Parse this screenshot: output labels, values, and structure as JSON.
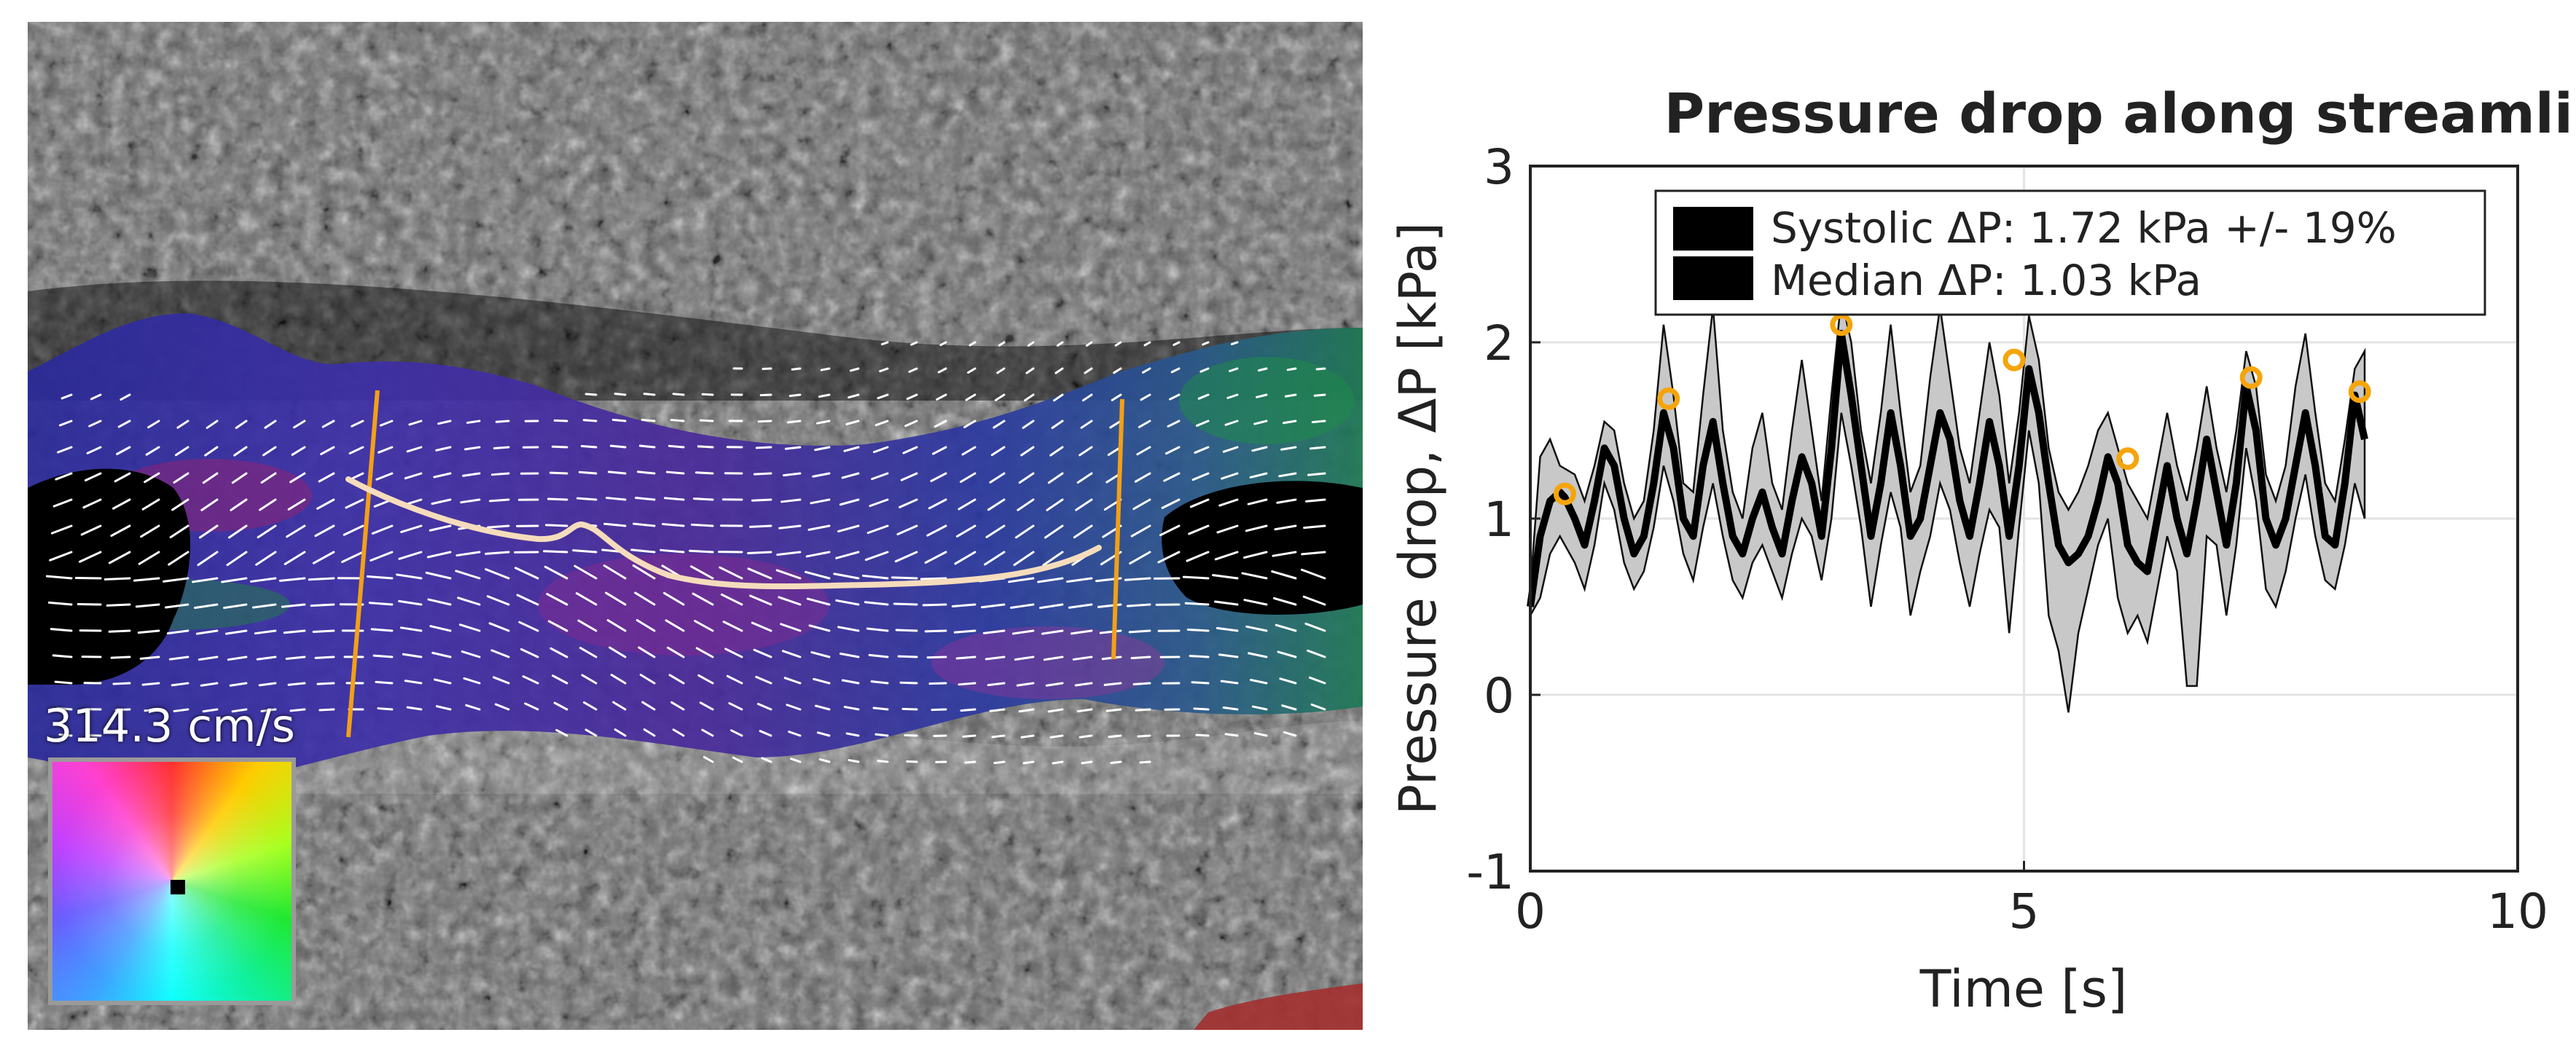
{
  "ultrasound": {
    "scale_label": "314.3 cm/s"
  },
  "chart_data": {
    "type": "line",
    "title": "Pressure drop along streamline",
    "xlabel": "Time [s]",
    "ylabel": "Pressure drop, ΔP [kPa]",
    "xlim": [
      0,
      10
    ],
    "ylim": [
      -1,
      3
    ],
    "xticks": [
      0,
      5,
      10
    ],
    "yticks": [
      -1,
      0,
      1,
      2,
      3
    ],
    "grid": true,
    "legend_position": "top-right",
    "legend": [
      "Systolic ΔP: 1.72 kPa +/- 19%",
      "Median ΔP: 1.03 kPa"
    ],
    "series": [
      {
        "name": "Median ΔP: 1.03 kPa",
        "x": [
          0,
          0.1,
          0.2,
          0.3,
          0.35,
          0.45,
          0.55,
          0.65,
          0.75,
          0.85,
          0.95,
          1.05,
          1.15,
          1.25,
          1.35,
          1.45,
          1.55,
          1.65,
          1.75,
          1.85,
          1.95,
          2.05,
          2.15,
          2.25,
          2.35,
          2.45,
          2.55,
          2.65,
          2.75,
          2.85,
          2.95,
          3.05,
          3.15,
          3.25,
          3.35,
          3.45,
          3.55,
          3.65,
          3.75,
          3.85,
          3.95,
          4.05,
          4.15,
          4.25,
          4.35,
          4.45,
          4.55,
          4.65,
          4.75,
          4.85,
          4.95,
          5.05,
          5.15,
          5.25,
          5.35,
          5.45,
          5.55,
          5.65,
          5.75,
          5.85,
          5.95,
          6.05,
          6.15,
          6.25,
          6.35,
          6.45,
          6.55,
          6.65,
          6.75,
          6.85,
          6.95,
          7.05,
          7.15,
          7.25,
          7.35,
          7.45,
          7.55,
          7.65,
          7.75,
          7.85,
          7.95,
          8.05,
          8.15,
          8.25,
          8.35,
          8.45
        ],
        "y": [
          0.5,
          0.9,
          1.1,
          1.15,
          1.12,
          1.0,
          0.85,
          1.1,
          1.4,
          1.3,
          1.0,
          0.8,
          0.9,
          1.2,
          1.6,
          1.4,
          1.0,
          0.9,
          1.3,
          1.55,
          1.2,
          0.9,
          0.8,
          1.0,
          1.15,
          0.95,
          0.8,
          1.1,
          1.35,
          1.2,
          0.9,
          1.4,
          2.05,
          1.7,
          1.3,
          0.9,
          1.2,
          1.6,
          1.3,
          0.9,
          1.0,
          1.3,
          1.6,
          1.45,
          1.1,
          0.9,
          1.2,
          1.55,
          1.3,
          0.9,
          1.3,
          1.85,
          1.6,
          1.2,
          0.85,
          0.75,
          0.8,
          0.9,
          1.1,
          1.35,
          1.2,
          0.85,
          0.75,
          0.7,
          1.0,
          1.3,
          1.0,
          0.8,
          1.1,
          1.45,
          1.15,
          0.85,
          1.2,
          1.75,
          1.5,
          1.0,
          0.85,
          1.0,
          1.3,
          1.6,
          1.3,
          0.9,
          0.85,
          1.2,
          1.7,
          1.45
        ]
      },
      {
        "name": "Systolic ΔP: 1.72 kPa +/- 19%",
        "x": [
          0.35,
          1.4,
          3.15,
          4.9,
          6.05,
          7.3,
          8.4
        ],
        "y": [
          1.14,
          1.68,
          2.1,
          1.9,
          1.34,
          1.8,
          1.72
        ]
      }
    ],
    "band": {
      "x": [
        0,
        0.1,
        0.2,
        0.3,
        0.45,
        0.55,
        0.65,
        0.75,
        0.85,
        0.95,
        1.05,
        1.15,
        1.25,
        1.35,
        1.45,
        1.55,
        1.65,
        1.75,
        1.85,
        1.95,
        2.05,
        2.15,
        2.25,
        2.35,
        2.45,
        2.55,
        2.65,
        2.75,
        2.85,
        2.95,
        3.05,
        3.15,
        3.25,
        3.35,
        3.45,
        3.55,
        3.65,
        3.75,
        3.85,
        3.95,
        4.05,
        4.15,
        4.25,
        4.35,
        4.45,
        4.55,
        4.65,
        4.75,
        4.85,
        4.95,
        5.05,
        5.15,
        5.25,
        5.35,
        5.45,
        5.55,
        5.65,
        5.75,
        5.85,
        5.95,
        6.05,
        6.15,
        6.25,
        6.35,
        6.45,
        6.55,
        6.65,
        6.75,
        6.85,
        6.95,
        7.05,
        7.15,
        7.25,
        7.35,
        7.45,
        7.55,
        7.65,
        7.75,
        7.85,
        7.95,
        8.05,
        8.15,
        8.25,
        8.35,
        8.45
      ],
      "upper": [
        0.6,
        1.35,
        1.45,
        1.3,
        1.25,
        1.1,
        1.3,
        1.55,
        1.5,
        1.2,
        1.0,
        1.1,
        1.5,
        2.1,
        1.7,
        1.2,
        1.15,
        1.7,
        2.2,
        1.5,
        1.15,
        1.0,
        1.4,
        1.6,
        1.2,
        1.05,
        1.5,
        1.9,
        1.5,
        1.1,
        1.7,
        2.25,
        2.0,
        1.5,
        1.2,
        1.6,
        2.1,
        1.6,
        1.15,
        1.3,
        1.8,
        2.2,
        1.8,
        1.4,
        1.2,
        1.6,
        2.0,
        1.7,
        1.2,
        1.6,
        2.15,
        1.9,
        1.4,
        1.15,
        1.05,
        1.15,
        1.3,
        1.5,
        1.6,
        1.4,
        1.2,
        1.1,
        1.0,
        1.3,
        1.6,
        1.3,
        1.1,
        1.4,
        1.75,
        1.4,
        1.15,
        1.5,
        1.95,
        1.75,
        1.25,
        1.1,
        1.3,
        1.75,
        2.05,
        1.6,
        1.2,
        1.1,
        1.45,
        1.85,
        1.95
      ],
      "lower": [
        0.45,
        0.55,
        0.8,
        0.9,
        0.75,
        0.6,
        0.85,
        1.2,
        1.05,
        0.75,
        0.6,
        0.7,
        0.95,
        1.3,
        1.1,
        0.8,
        0.65,
        0.95,
        1.2,
        0.9,
        0.65,
        0.55,
        0.75,
        0.85,
        0.7,
        0.55,
        0.8,
        1.0,
        0.9,
        0.65,
        1.0,
        1.6,
        1.3,
        0.95,
        0.5,
        0.85,
        1.15,
        0.95,
        0.45,
        0.7,
        0.9,
        1.2,
        1.05,
        0.75,
        0.5,
        0.8,
        1.05,
        0.95,
        0.35,
        0.95,
        1.5,
        1.2,
        0.45,
        0.25,
        -0.1,
        0.35,
        0.6,
        0.85,
        1.0,
        0.55,
        0.35,
        0.45,
        0.3,
        0.6,
        0.9,
        0.7,
        0.05,
        0.05,
        0.9,
        0.85,
        0.45,
        0.85,
        1.4,
        1.1,
        0.6,
        0.5,
        0.7,
        1.0,
        1.25,
        0.9,
        0.65,
        0.6,
        0.85,
        1.2,
        1.0
      ]
    },
    "colors": {
      "median_line": "#000000",
      "band_fill": "#c8c8c8",
      "systolic_marker": "#f5a50a",
      "grid": "#e3e3e3"
    }
  }
}
